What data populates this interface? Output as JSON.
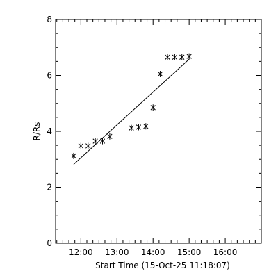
{
  "chart_data": {
    "type": "scatter",
    "xlabel": "Start Time (15-Oct-25 11:18:07)",
    "ylabel": "R/Rs",
    "xlim": [
      "11:18",
      "17:00"
    ],
    "ylim": [
      0,
      8
    ],
    "x_ticks": [
      {
        "time": "12:00",
        "label": "12:00"
      },
      {
        "time": "13:00",
        "label": "13:00"
      },
      {
        "time": "14:00",
        "label": "14:00"
      },
      {
        "time": "15:00",
        "label": "15:00"
      },
      {
        "time": "16:00",
        "label": "16:00"
      }
    ],
    "y_ticks": [
      {
        "value": 0,
        "label": "0"
      },
      {
        "value": 2,
        "label": "2"
      },
      {
        "value": 4,
        "label": "4"
      },
      {
        "value": 6,
        "label": "6"
      },
      {
        "value": 8,
        "label": "8"
      }
    ],
    "points": [
      {
        "time": "11:48",
        "y": 3.12
      },
      {
        "time": "12:00",
        "y": 3.48
      },
      {
        "time": "12:12",
        "y": 3.48
      },
      {
        "time": "12:24",
        "y": 3.65
      },
      {
        "time": "12:36",
        "y": 3.65
      },
      {
        "time": "12:48",
        "y": 3.82
      },
      {
        "time": "13:24",
        "y": 4.12
      },
      {
        "time": "13:36",
        "y": 4.15
      },
      {
        "time": "13:48",
        "y": 4.18
      },
      {
        "time": "14:00",
        "y": 4.85
      },
      {
        "time": "14:12",
        "y": 6.05
      },
      {
        "time": "14:24",
        "y": 6.65
      },
      {
        "time": "14:36",
        "y": 6.65
      },
      {
        "time": "14:48",
        "y": 6.65
      },
      {
        "time": "15:00",
        "y": 6.68
      }
    ],
    "fit_line": [
      {
        "time": "11:48",
        "y": 2.82
      },
      {
        "time": "15:00",
        "y": 6.58
      }
    ],
    "marker": "asterisk",
    "grid": false,
    "color": "#000000"
  }
}
